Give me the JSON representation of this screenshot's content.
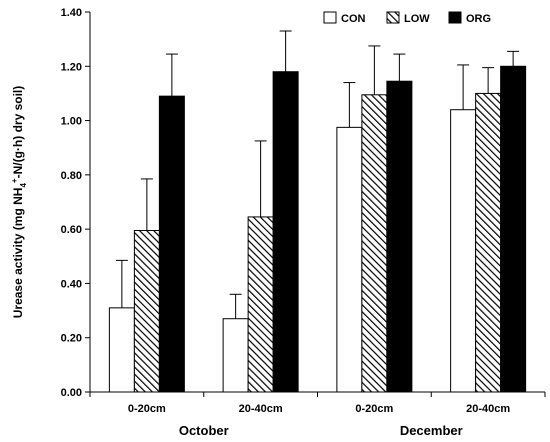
{
  "chart_data": {
    "type": "bar",
    "ylabel": {
      "prefix": "Urease activity  (mg NH",
      "sub": "4",
      "sup": "+",
      "suffix": "-N/(g·h) dry  soil)"
    },
    "ylim": [
      0,
      1.4
    ],
    "yticks": [
      "0.00",
      "0.20",
      "0.40",
      "0.60",
      "0.80",
      "1.00",
      "1.20",
      "1.40"
    ],
    "categories": [
      "0-20cm",
      "20-40cm",
      "0-20cm",
      "20-40cm"
    ],
    "groups": [
      {
        "label": "October",
        "categories": [
          0,
          1
        ]
      },
      {
        "label": "December",
        "categories": [
          2,
          3
        ]
      }
    ],
    "series": [
      {
        "name": "CON",
        "values": [
          0.31,
          0.27,
          0.975,
          1.04
        ],
        "errors": [
          0.175,
          0.09,
          0.165,
          0.165
        ],
        "fill": "#ffffff"
      },
      {
        "name": "LOW",
        "values": [
          0.595,
          0.645,
          1.095,
          1.1
        ],
        "errors": [
          0.19,
          0.28,
          0.18,
          0.095
        ],
        "fill": "hatch"
      },
      {
        "name": "ORG",
        "values": [
          1.09,
          1.18,
          1.145,
          1.2
        ],
        "errors": [
          0.155,
          0.15,
          0.1,
          0.055
        ],
        "fill": "#000000"
      }
    ],
    "legend_position": "top-right",
    "grid": false
  }
}
